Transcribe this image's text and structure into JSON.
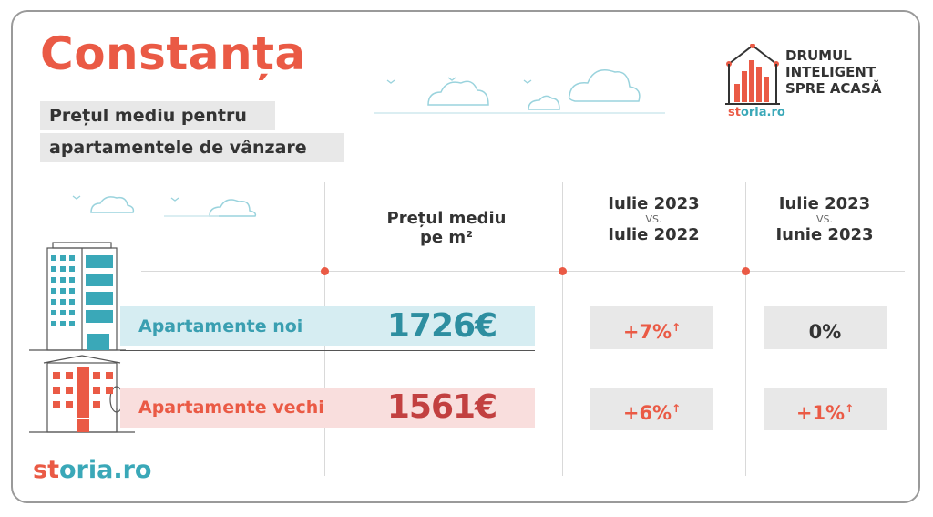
{
  "header": {
    "title": "Constanța",
    "subtitle_line1": "Prețul mediu pentru",
    "subtitle_line2": "apartamentele de vânzare"
  },
  "badge": {
    "line1": "DRUMUL",
    "line2": "INTELIGENT",
    "line3": "SPRE ACASĂ",
    "brand_part1": "st",
    "brand_part2": "oria.ro"
  },
  "columns": {
    "price_line1": "Prețul mediu",
    "price_line2": "pe m²",
    "yoy_line1": "Iulie 2023",
    "yoy_vs": "VS.",
    "yoy_line2": "Iulie 2022",
    "mom_line1": "Iulie 2023",
    "mom_vs": "VS.",
    "mom_line2": "Iunie 2023"
  },
  "rows": [
    {
      "label": "Apartamente noi",
      "price": "1726€",
      "yoy": "+7%",
      "yoy_arrow": "↑",
      "mom": "0%",
      "mom_arrow": ""
    },
    {
      "label": "Apartamente vechi",
      "price": "1561€",
      "yoy": "+6%",
      "yoy_arrow": "↑",
      "mom": "+1%",
      "mom_arrow": "↑"
    }
  ],
  "footer": {
    "brand_part1": "st",
    "brand_part2": "oria.ro"
  },
  "colors": {
    "accent_red": "#ea5a45",
    "accent_teal": "#3a9fb1",
    "cell_gray": "#e8e8e8"
  }
}
